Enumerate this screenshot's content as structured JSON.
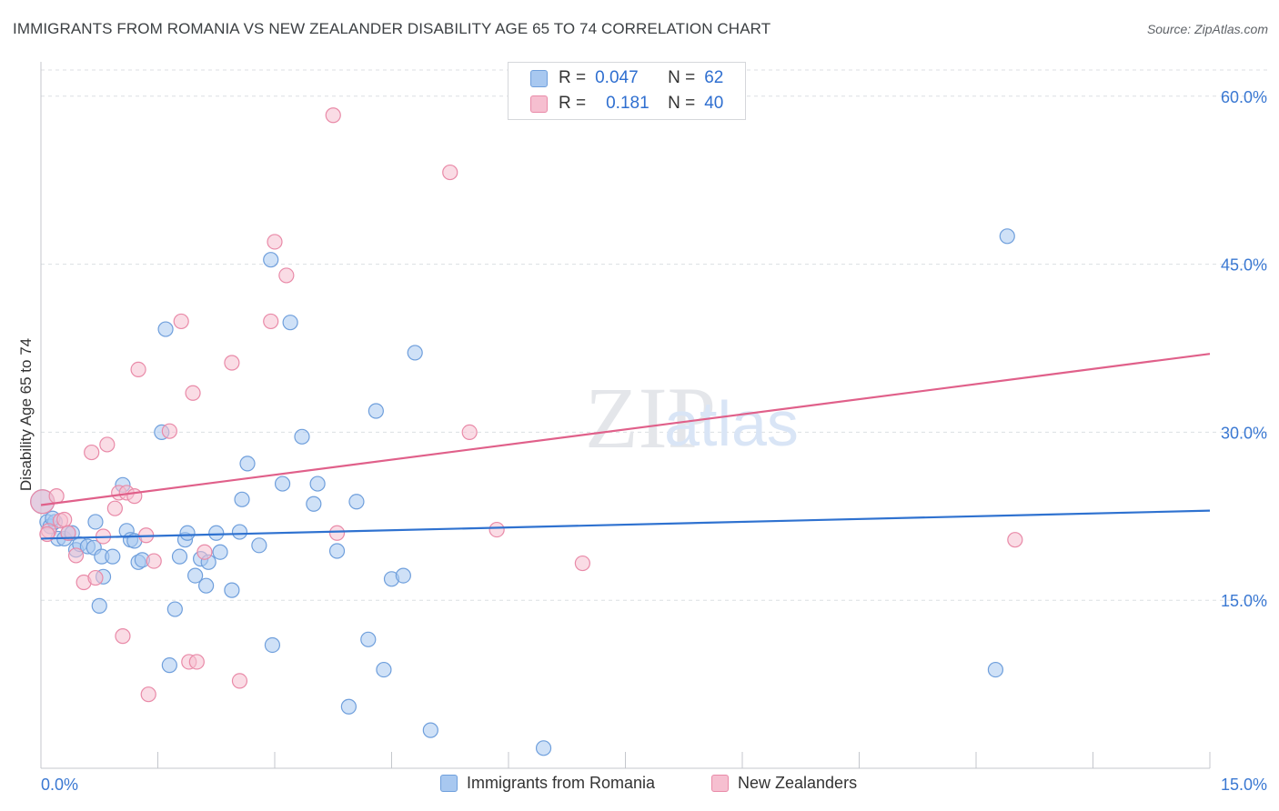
{
  "title": "IMMIGRANTS FROM ROMANIA VS NEW ZEALANDER DISABILITY AGE 65 TO 74 CORRELATION CHART",
  "source": "Source: ZipAtlas.com",
  "colors": {
    "blue_fill": "#a8c8f0",
    "blue_stroke": "#6f9fdc",
    "blue_line": "#2f72d0",
    "pink_fill": "#f6bfd0",
    "pink_stroke": "#e98aa8",
    "pink_line": "#e0608a",
    "axis_text": "#3a78d2",
    "grid": "#dcdfe3"
  },
  "legend": {
    "r_label": "R =",
    "n_label": "N =",
    "blue": {
      "r": "0.047",
      "n": "62"
    },
    "pink": {
      "r": "0.181",
      "n": "40"
    }
  },
  "watermark": {
    "zip": "ZIP",
    "atlas": "atlas"
  },
  "chart_data": {
    "type": "scatter",
    "title": "IMMIGRANTS FROM ROMANIA VS NEW ZEALANDER DISABILITY AGE 65 TO 74 CORRELATION CHART",
    "xlabel": "",
    "ylabel": "Disability Age 65 to 74",
    "xlim": [
      0,
      15
    ],
    "ylim": [
      0,
      62.5
    ],
    "x_tick_labels": {
      "min": "0.0%",
      "max": "15.0%"
    },
    "y_ticks": [
      15,
      30,
      45,
      60
    ],
    "y_tick_labels": [
      "15.0%",
      "30.0%",
      "45.0%",
      "60.0%"
    ],
    "legend_position": "bottom-center",
    "series": [
      {
        "name": "Immigrants from Romania",
        "color": "blue",
        "trend": {
          "x0": 0,
          "y0": 20.5,
          "x1": 15,
          "y1": 23.0
        },
        "points": [
          [
            0.02,
            23.8
          ],
          [
            0.08,
            22.0
          ],
          [
            0.12,
            21.6
          ],
          [
            0.18,
            22.0
          ],
          [
            0.22,
            20.5
          ],
          [
            0.3,
            20.5
          ],
          [
            0.35,
            21.0
          ],
          [
            0.4,
            21.0
          ],
          [
            0.45,
            19.5
          ],
          [
            0.5,
            20.0
          ],
          [
            0.6,
            19.8
          ],
          [
            0.68,
            19.7
          ],
          [
            0.7,
            22.0
          ],
          [
            0.75,
            14.5
          ],
          [
            0.78,
            18.9
          ],
          [
            0.8,
            17.1
          ],
          [
            0.92,
            18.9
          ],
          [
            1.05,
            25.3
          ],
          [
            1.1,
            21.2
          ],
          [
            1.15,
            20.4
          ],
          [
            1.2,
            20.3
          ],
          [
            1.25,
            18.4
          ],
          [
            1.3,
            18.6
          ],
          [
            1.55,
            30.0
          ],
          [
            1.6,
            39.2
          ],
          [
            1.65,
            9.2
          ],
          [
            1.72,
            14.2
          ],
          [
            1.78,
            18.9
          ],
          [
            1.85,
            20.4
          ],
          [
            1.88,
            21.0
          ],
          [
            1.98,
            17.2
          ],
          [
            2.05,
            18.7
          ],
          [
            2.12,
            16.3
          ],
          [
            2.15,
            18.4
          ],
          [
            2.25,
            21.0
          ],
          [
            2.3,
            19.3
          ],
          [
            2.45,
            15.9
          ],
          [
            2.55,
            21.1
          ],
          [
            2.58,
            24.0
          ],
          [
            2.65,
            27.2
          ],
          [
            2.8,
            19.9
          ],
          [
            2.95,
            45.4
          ],
          [
            2.97,
            11.0
          ],
          [
            3.1,
            25.4
          ],
          [
            3.2,
            39.8
          ],
          [
            3.35,
            29.6
          ],
          [
            3.5,
            23.6
          ],
          [
            3.55,
            25.4
          ],
          [
            3.8,
            19.4
          ],
          [
            3.95,
            5.5
          ],
          [
            4.05,
            23.8
          ],
          [
            4.2,
            11.5
          ],
          [
            4.3,
            31.9
          ],
          [
            4.4,
            8.8
          ],
          [
            4.5,
            16.9
          ],
          [
            4.65,
            17.2
          ],
          [
            4.8,
            37.1
          ],
          [
            5.0,
            3.4
          ],
          [
            6.45,
            1.8
          ],
          [
            12.25,
            8.8
          ],
          [
            12.4,
            47.5
          ],
          [
            0.15,
            22.3
          ]
        ]
      },
      {
        "name": "New Zealanders",
        "color": "pink",
        "trend": {
          "x0": 0,
          "y0": 23.5,
          "x1": 15,
          "y1": 37.0
        },
        "points": [
          [
            0.02,
            23.8
          ],
          [
            0.1,
            21.2
          ],
          [
            0.2,
            24.3
          ],
          [
            0.25,
            22.1
          ],
          [
            0.3,
            22.2
          ],
          [
            0.35,
            21.0
          ],
          [
            0.45,
            19.0
          ],
          [
            0.55,
            16.6
          ],
          [
            0.65,
            28.2
          ],
          [
            0.7,
            17.0
          ],
          [
            0.8,
            20.7
          ],
          [
            0.85,
            28.9
          ],
          [
            0.95,
            23.2
          ],
          [
            1.0,
            24.6
          ],
          [
            1.05,
            11.8
          ],
          [
            1.1,
            24.6
          ],
          [
            1.2,
            24.3
          ],
          [
            1.25,
            35.6
          ],
          [
            1.35,
            20.8
          ],
          [
            1.38,
            6.6
          ],
          [
            1.45,
            18.5
          ],
          [
            1.65,
            30.1
          ],
          [
            1.8,
            39.9
          ],
          [
            1.9,
            9.5
          ],
          [
            1.95,
            33.5
          ],
          [
            2.0,
            9.5
          ],
          [
            2.1,
            19.3
          ],
          [
            2.45,
            36.2
          ],
          [
            2.55,
            7.8
          ],
          [
            2.95,
            39.9
          ],
          [
            3.0,
            47.0
          ],
          [
            3.15,
            44.0
          ],
          [
            3.75,
            58.3
          ],
          [
            3.8,
            21.0
          ],
          [
            5.25,
            53.2
          ],
          [
            5.5,
            30.0
          ],
          [
            5.85,
            21.3
          ],
          [
            6.95,
            18.3
          ],
          [
            12.5,
            20.4
          ],
          [
            0.08,
            20.9
          ]
        ]
      }
    ]
  }
}
